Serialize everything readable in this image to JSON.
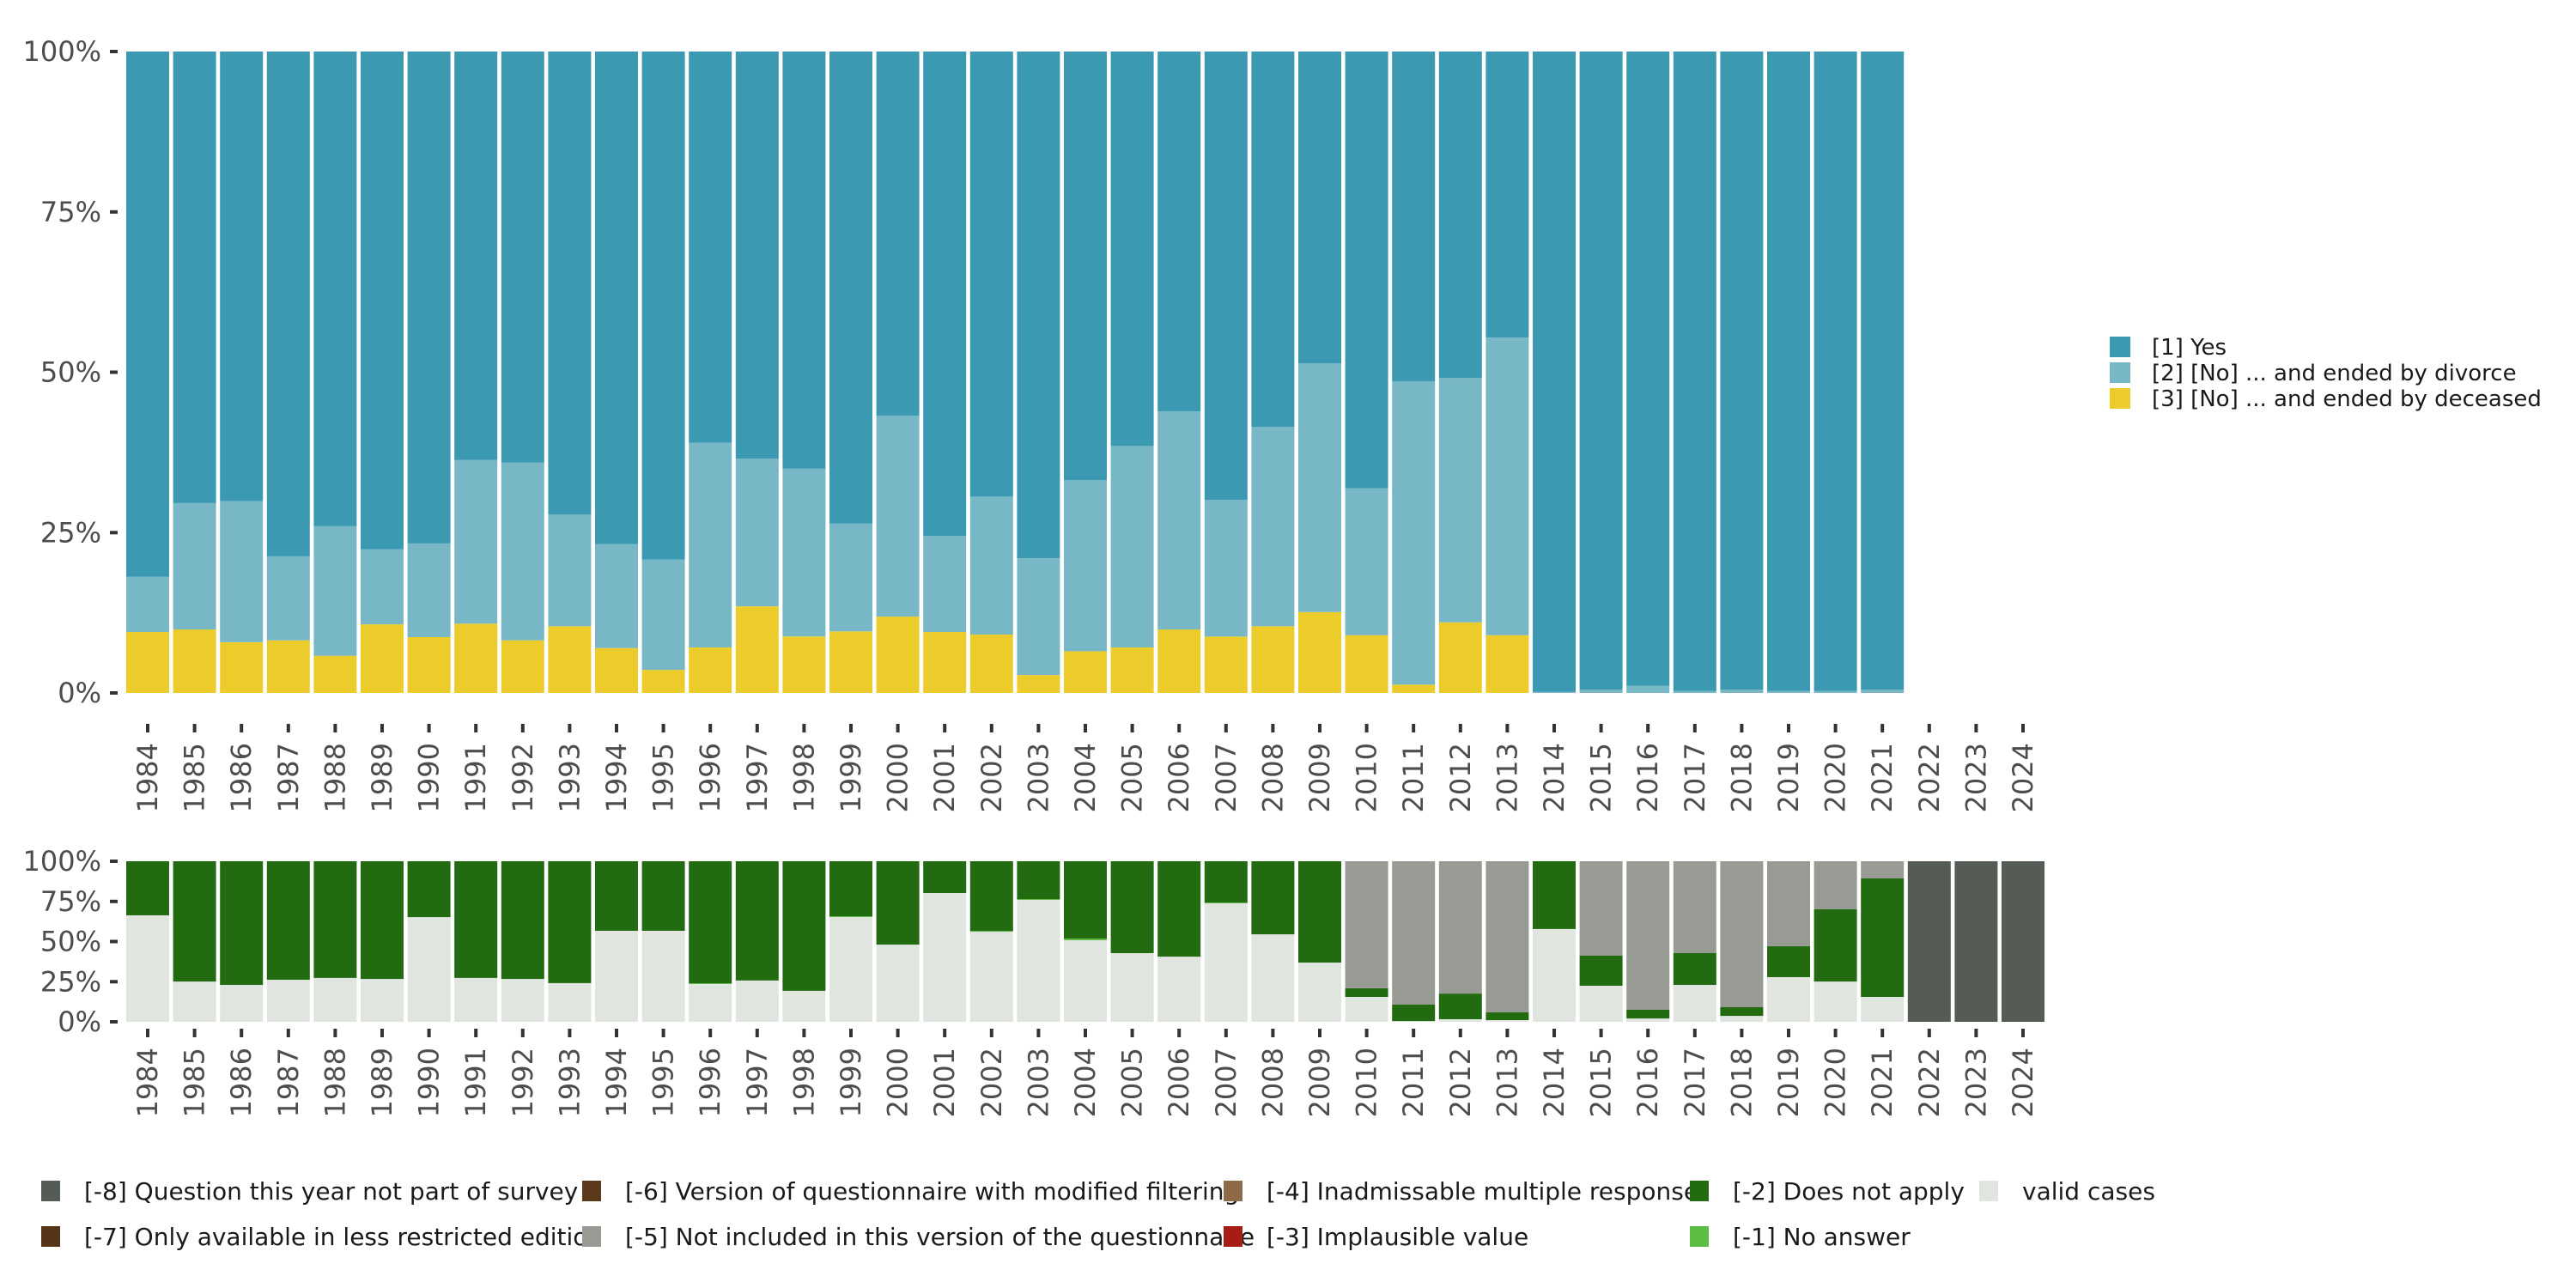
{
  "chart_data": [
    {
      "type": "bar",
      "stacked": true,
      "normalized": true,
      "title": "",
      "xlabel": "",
      "ylabel": "",
      "ylim": [
        0,
        100
      ],
      "yticks": [
        "0%",
        "25%",
        "50%",
        "75%",
        "100%"
      ],
      "legend_position": "right",
      "categories": [
        "1984",
        "1985",
        "1986",
        "1987",
        "1988",
        "1989",
        "1990",
        "1991",
        "1992",
        "1993",
        "1994",
        "1995",
        "1996",
        "1997",
        "1998",
        "1999",
        "2000",
        "2001",
        "2002",
        "2003",
        "2004",
        "2005",
        "2006",
        "2007",
        "2008",
        "2009",
        "2010",
        "2011",
        "2012",
        "2013",
        "2014",
        "2015",
        "2016",
        "2017",
        "2018",
        "2019",
        "2020",
        "2021",
        "2022",
        "2023",
        "2024"
      ],
      "series": [
        {
          "name": "[3] [No] ... and ended by deceased",
          "color": "#EBCC2A",
          "values": [
            9.5,
            9.9,
            7.9,
            8.2,
            5.8,
            10.7,
            8.7,
            10.8,
            8.2,
            10.4,
            7.0,
            3.6,
            7.1,
            13.5,
            8.8,
            9.6,
            11.9,
            9.5,
            9.1,
            2.8,
            6.5,
            7.1,
            9.9,
            8.8,
            10.4,
            12.6,
            9.0,
            1.3,
            11.0,
            9.0,
            0,
            0,
            0,
            0,
            0,
            0,
            0,
            0,
            null,
            null,
            null
          ]
        },
        {
          "name": "[2] [No] ... and ended by divorce",
          "color": "#78B7C5",
          "values": [
            8.6,
            19.7,
            22.0,
            13.1,
            20.2,
            11.7,
            14.6,
            25.5,
            27.7,
            17.4,
            16.2,
            17.2,
            31.9,
            23.0,
            26.2,
            16.8,
            31.3,
            15.0,
            21.5,
            18.2,
            26.7,
            31.4,
            34.0,
            21.3,
            31.1,
            38.8,
            22.9,
            47.3,
            38.1,
            46.4,
            0.2,
            0.5,
            1.1,
            0.3,
            0.5,
            0.3,
            0.3,
            0.5,
            null,
            null,
            null
          ]
        },
        {
          "name": "[1] Yes",
          "color": "#3B9AB2",
          "values": [
            81.9,
            70.4,
            70.1,
            78.7,
            74.0,
            77.6,
            76.7,
            63.7,
            64.1,
            72.2,
            76.8,
            79.2,
            61.0,
            63.5,
            65.0,
            73.6,
            56.8,
            75.5,
            69.4,
            79.0,
            66.8,
            61.5,
            56.1,
            69.9,
            58.5,
            48.6,
            68.1,
            51.4,
            50.9,
            44.6,
            99.8,
            99.5,
            98.9,
            99.7,
            99.5,
            99.7,
            99.7,
            99.5,
            null,
            null,
            null
          ]
        }
      ],
      "legend": [
        "[1] Yes",
        "[2] [No] ... and ended by divorce",
        "[3] [No] ... and ended by deceased"
      ]
    },
    {
      "type": "bar",
      "stacked": true,
      "normalized": true,
      "title": "",
      "xlabel": "",
      "ylabel": "",
      "ylim": [
        0,
        100
      ],
      "yticks": [
        "0%",
        "25%",
        "50%",
        "75%",
        "100%"
      ],
      "legend_position": "bottom",
      "categories": [
        "1984",
        "1985",
        "1986",
        "1987",
        "1988",
        "1989",
        "1990",
        "1991",
        "1992",
        "1993",
        "1994",
        "1995",
        "1996",
        "1997",
        "1998",
        "1999",
        "2000",
        "2001",
        "2002",
        "2003",
        "2004",
        "2005",
        "2006",
        "2007",
        "2008",
        "2009",
        "2010",
        "2011",
        "2012",
        "2013",
        "2014",
        "2015",
        "2016",
        "2017",
        "2018",
        "2019",
        "2020",
        "2021",
        "2022",
        "2023",
        "2024"
      ],
      "series": [
        {
          "name": "valid cases",
          "color": "#E0E5E0",
          "values": [
            66.3,
            25.1,
            23.0,
            26.2,
            27.3,
            26.7,
            65.2,
            27.3,
            26.7,
            24.1,
            56.7,
            56.7,
            23.5,
            25.7,
            19.3,
            65.2,
            48.1,
            80.2,
            56.1,
            75.9,
            50.8,
            42.8,
            40.6,
            73.8,
            54.5,
            36.9,
            15.5,
            0.5,
            1.6,
            1.1,
            57.8,
            22.5,
            2.1,
            23.0,
            3.7,
            27.8,
            25.1,
            15.5,
            0,
            0,
            0
          ]
        },
        {
          "name": "[-1] No answer",
          "color": "#5BBD43",
          "values": [
            0,
            0,
            0,
            0,
            0,
            0,
            0,
            0,
            0,
            0,
            0,
            0,
            0.5,
            0,
            0,
            0.5,
            0,
            0,
            0.5,
            0.5,
            1.0,
            0,
            0,
            0.5,
            0,
            0,
            0,
            0,
            0,
            0,
            0,
            0,
            0,
            0,
            0,
            0,
            0,
            0,
            0,
            0,
            0
          ]
        },
        {
          "name": "[-2] Does not apply",
          "color": "#226B10",
          "values": [
            33.7,
            74.9,
            77.0,
            73.8,
            72.7,
            73.3,
            34.8,
            72.7,
            73.3,
            75.9,
            43.3,
            43.3,
            76.0,
            74.3,
            80.7,
            34.3,
            51.9,
            19.8,
            43.4,
            23.6,
            48.2,
            57.2,
            59.4,
            25.7,
            45.5,
            63.1,
            5.4,
            10.2,
            16.0,
            4.8,
            42.2,
            18.7,
            5.4,
            19.8,
            5.4,
            19.3,
            45.0,
            73.8,
            0,
            0,
            0
          ]
        },
        {
          "name": "[-5] Not included in this version of the questionnaire",
          "color": "#979B93",
          "values": [
            0,
            0,
            0,
            0,
            0,
            0,
            0,
            0,
            0,
            0,
            0,
            0,
            0,
            0,
            0,
            0,
            0,
            0,
            0,
            0,
            0,
            0,
            0,
            0,
            0,
            0,
            79.1,
            89.3,
            82.4,
            94.1,
            0,
            58.8,
            92.5,
            57.2,
            90.9,
            52.9,
            29.9,
            10.7,
            0,
            0,
            0
          ]
        },
        {
          "name": "[-8] Question this year not part of survey",
          "color": "#555C55",
          "values": [
            0,
            0,
            0,
            0,
            0,
            0,
            0,
            0,
            0,
            0,
            0,
            0,
            0,
            0,
            0,
            0,
            0,
            0,
            0,
            0,
            0,
            0,
            0,
            0,
            0,
            0,
            0,
            0,
            0,
            0,
            0,
            0,
            0,
            0,
            0,
            0,
            0,
            0,
            100,
            100,
            100
          ]
        }
      ],
      "legend": [
        {
          "label": "[-8] Question this year not part of survey",
          "color": "#555C55"
        },
        {
          "label": "[-7] Only available in less restricted edition",
          "color": "#56341A"
        },
        {
          "label": "[-6] Version of questionnaire with modified filtering",
          "color": "#5A3A1A"
        },
        {
          "label": "[-5] Not included in this version of the questionnaire",
          "color": "#979B93"
        },
        {
          "label": "[-4] Inadmissable multiple response",
          "color": "#8E6B48"
        },
        {
          "label": "[-3] Implausible value",
          "color": "#A81C16"
        },
        {
          "label": "[-2] Does not apply",
          "color": "#226B10"
        },
        {
          "label": "[-1] No answer",
          "color": "#5BBD43"
        },
        {
          "label": "valid cases",
          "color": "#E0E5E0"
        }
      ]
    }
  ]
}
